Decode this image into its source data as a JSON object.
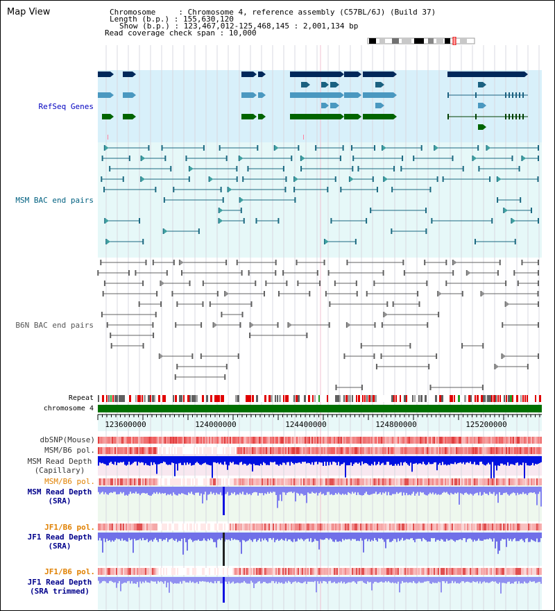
{
  "title": "Map View",
  "header": {
    "chromosome": {
      "key": "Chromosome",
      "value": "Chromosome 4, reference assembly (C57BL/6J) (Build 37)"
    },
    "length": {
      "key": "Length (b.p.)",
      "value": "155,630,120"
    },
    "show": {
      "key": "Show (b.p.)",
      "value": "123,467,012-125,468,145 : 2,001,134 bp"
    },
    "span": {
      "key": "Read coverage check span",
      "value": "10,000"
    }
  },
  "tracks": {
    "refseq": "RefSeq Genes",
    "msm_bac": "MSM BAC end pairs",
    "b6n_bac": "B6N BAC end pairs",
    "repeat": "Repeat",
    "chromosome": "chromosome 4",
    "dbsnp": "dbSNP(Mouse)",
    "msm_b6_pol": "MSM/B6 pol.",
    "msm_depth_cap_1": "MSM Read Depth",
    "msm_depth_cap_2": "(Capillary)",
    "msm_b6_pol_2": "MSM/B6 pol.",
    "msm_depth_sra_1": "MSM Read Depth",
    "msm_depth_sra_2": "(SRA)",
    "jf1_b6_pol": "JF1/B6 pol.",
    "jf1_depth_sra_1": "JF1 Read Depth",
    "jf1_depth_sra_2": "(SRA)",
    "jf1_b6_pol_2": "JF1/B6 pol.",
    "jf1_depth_trim_1": "JF1 Read Depth",
    "jf1_depth_trim_2": "(SRA trimmed)"
  },
  "axis": {
    "ticks": [
      "123600000",
      "124000000",
      "124400000",
      "124800000",
      "125200000"
    ]
  },
  "colors": {
    "navy": "#00008b",
    "teal": "#006080",
    "gray": "#555555",
    "orange": "#e08000",
    "refseq_bg": "#d8f0fa",
    "msm_bg": "#e6f8f8",
    "b6n_bg": "#ffffff",
    "depth_bg": "#eef8ee",
    "jf1_bg": "#e8f8f8"
  }
}
